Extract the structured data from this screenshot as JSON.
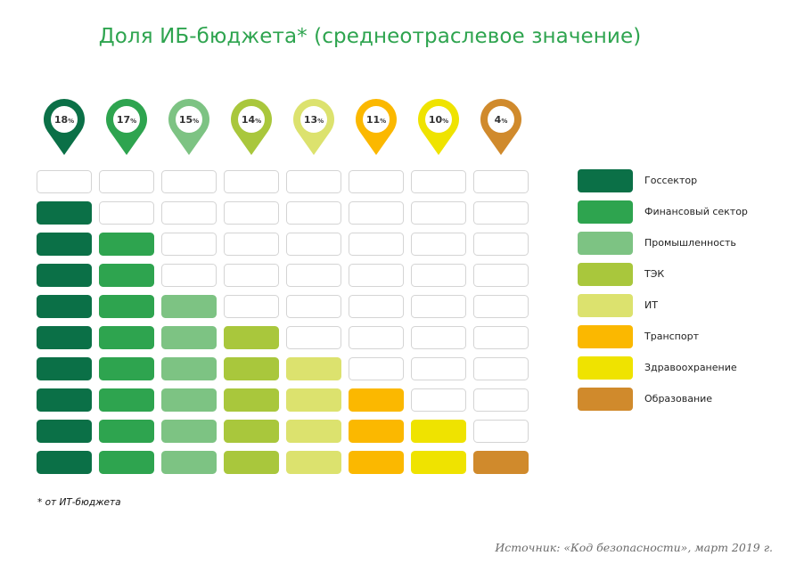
{
  "chart_data": {
    "type": "bar",
    "title": "Доля ИБ-бюджета* (среднеотраслевое значение)",
    "categories": [
      "Госсектор",
      "Финансовый сектор",
      "Промышленность",
      "ТЭК",
      "ИТ",
      "Транспорт",
      "Здравоохранение",
      "Образование"
    ],
    "values": [
      18,
      17,
      15,
      14,
      13,
      11,
      10,
      4
    ],
    "value_labels": [
      "18%",
      "17%",
      "15%",
      "14%",
      "13%",
      "11%",
      "10%",
      "4%"
    ],
    "filled_cells": [
      9,
      8,
      6,
      5,
      4,
      3,
      2,
      1
    ],
    "total_cells": 10,
    "colors": [
      "#0b7047",
      "#2ea44f",
      "#7dc383",
      "#a9c73c",
      "#dce26e",
      "#fbb800",
      "#efe300",
      "#d08a2c"
    ],
    "unit": "%",
    "xlabel": "",
    "ylabel": "",
    "legend_position": "right"
  },
  "footnote": "* от ИТ-бюджета",
  "source": "Источник: «Код безопасности», март 2019 г."
}
